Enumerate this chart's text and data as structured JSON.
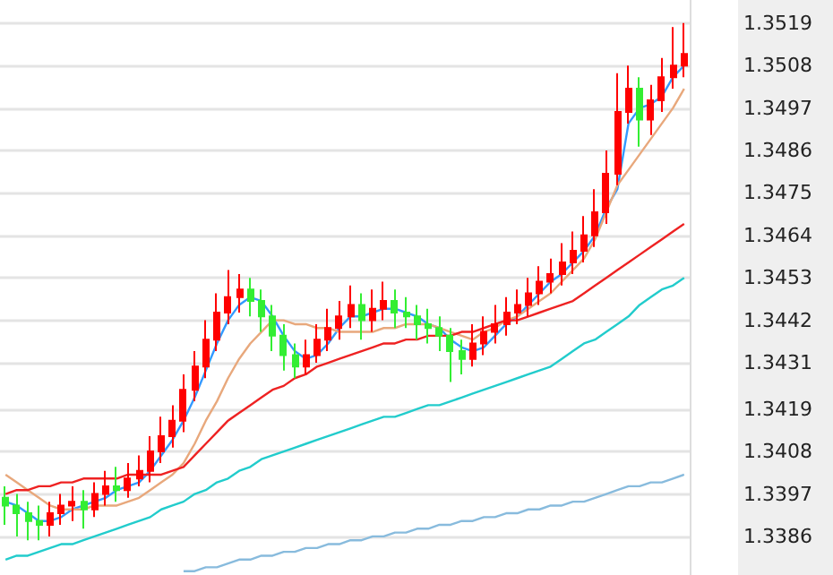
{
  "chart_data": {
    "type": "candlestick",
    "categories": [
      null,
      null,
      null,
      null,
      null,
      null,
      null,
      null,
      null,
      null,
      null,
      null,
      null,
      null,
      null,
      null,
      null,
      null,
      null,
      null,
      null,
      null,
      null,
      null,
      null,
      null,
      null,
      null,
      null,
      null,
      null,
      null,
      null,
      null,
      null,
      null,
      null,
      null,
      null,
      null,
      null,
      null,
      null,
      null,
      null,
      null,
      null,
      null,
      null,
      null,
      null,
      null,
      null,
      null,
      null,
      null,
      null,
      null,
      null,
      null,
      null,
      null
    ],
    "ohlc": [
      [
        1.3396,
        1.3399,
        1.3389,
        1.3394
      ],
      [
        1.3394,
        1.3397,
        1.3386,
        1.3392
      ],
      [
        1.3392,
        1.3395,
        1.3385,
        1.339
      ],
      [
        1.339,
        1.3394,
        1.3385,
        1.3389
      ],
      [
        1.3389,
        1.3395,
        1.3386,
        1.3392
      ],
      [
        1.3392,
        1.3397,
        1.3389,
        1.3394
      ],
      [
        1.3394,
        1.3399,
        1.339,
        1.3395
      ],
      [
        1.3395,
        1.3398,
        1.3388,
        1.3393
      ],
      [
        1.3393,
        1.34,
        1.3391,
        1.3397
      ],
      [
        1.3397,
        1.3403,
        1.3394,
        1.3399
      ],
      [
        1.3399,
        1.3404,
        1.3395,
        1.3398
      ],
      [
        1.3398,
        1.3405,
        1.3396,
        1.3401
      ],
      [
        1.3401,
        1.3407,
        1.3399,
        1.3403
      ],
      [
        1.3403,
        1.3412,
        1.34,
        1.3408
      ],
      [
        1.3408,
        1.3417,
        1.3405,
        1.3412
      ],
      [
        1.3412,
        1.342,
        1.3409,
        1.3416
      ],
      [
        1.3416,
        1.3428,
        1.3413,
        1.3424
      ],
      [
        1.3424,
        1.3434,
        1.3421,
        1.343
      ],
      [
        1.343,
        1.3442,
        1.3427,
        1.3437
      ],
      [
        1.3437,
        1.3449,
        1.3434,
        1.3444
      ],
      [
        1.3444,
        1.3455,
        1.3441,
        1.3448
      ],
      [
        1.3448,
        1.3454,
        1.3444,
        1.345
      ],
      [
        1.345,
        1.3453,
        1.3443,
        1.3447
      ],
      [
        1.3447,
        1.345,
        1.3439,
        1.3443
      ],
      [
        1.3443,
        1.3446,
        1.3434,
        1.3438
      ],
      [
        1.3438,
        1.3441,
        1.3429,
        1.3433
      ],
      [
        1.3433,
        1.3436,
        1.3427,
        1.343
      ],
      [
        1.343,
        1.3437,
        1.3428,
        1.3433
      ],
      [
        1.3433,
        1.3441,
        1.3431,
        1.3437
      ],
      [
        1.3437,
        1.3445,
        1.3434,
        1.344
      ],
      [
        1.344,
        1.3447,
        1.3437,
        1.3443
      ],
      [
        1.3443,
        1.3451,
        1.344,
        1.3446
      ],
      [
        1.3446,
        1.3449,
        1.3437,
        1.3442
      ],
      [
        1.3442,
        1.345,
        1.3439,
        1.3445
      ],
      [
        1.3445,
        1.3452,
        1.3442,
        1.3447
      ],
      [
        1.3447,
        1.345,
        1.344,
        1.3444
      ],
      [
        1.3444,
        1.3448,
        1.344,
        1.3443
      ],
      [
        1.3443,
        1.3446,
        1.3437,
        1.3441
      ],
      [
        1.3441,
        1.3445,
        1.3436,
        1.344
      ],
      [
        1.344,
        1.3443,
        1.3434,
        1.3438
      ],
      [
        1.3438,
        1.344,
        1.3426,
        1.3434
      ],
      [
        1.3434,
        1.3437,
        1.3428,
        1.3432
      ],
      [
        1.3432,
        1.3441,
        1.343,
        1.3436
      ],
      [
        1.3436,
        1.3443,
        1.3433,
        1.3439
      ],
      [
        1.3439,
        1.3446,
        1.3436,
        1.3441
      ],
      [
        1.3441,
        1.3448,
        1.3438,
        1.3444
      ],
      [
        1.3444,
        1.345,
        1.3441,
        1.3446
      ],
      [
        1.3446,
        1.3453,
        1.3443,
        1.3449
      ],
      [
        1.3449,
        1.3456,
        1.3446,
        1.3452
      ],
      [
        1.3452,
        1.3458,
        1.3449,
        1.3454
      ],
      [
        1.3454,
        1.3462,
        1.3451,
        1.3457
      ],
      [
        1.3457,
        1.3465,
        1.3454,
        1.346
      ],
      [
        1.346,
        1.3469,
        1.3457,
        1.3464
      ],
      [
        1.3464,
        1.3476,
        1.3461,
        1.347
      ],
      [
        1.347,
        1.3486,
        1.3467,
        1.348
      ],
      [
        1.348,
        1.3506,
        1.3477,
        1.3496
      ],
      [
        1.3496,
        1.3508,
        1.3493,
        1.3502
      ],
      [
        1.3502,
        1.3505,
        1.3487,
        1.3494
      ],
      [
        1.3494,
        1.3503,
        1.349,
        1.3499
      ],
      [
        1.3499,
        1.351,
        1.3496,
        1.3505
      ],
      [
        1.3505,
        1.3518,
        1.3502,
        1.3508
      ],
      [
        1.3508,
        1.3519,
        1.3505,
        1.3511
      ]
    ],
    "colors": [
      "#33ee33",
      "#33ee33",
      "#33ee33",
      "#33ee33",
      "#ff0000",
      "#ff0000",
      "#ff0000",
      "#33ee33",
      "#ff0000",
      "#ff0000",
      "#33ee33",
      "#ff0000",
      "#ff0000",
      "#ff0000",
      "#ff0000",
      "#ff0000",
      "#ff0000",
      "#ff0000",
      "#ff0000",
      "#ff0000",
      "#ff0000",
      "#ff0000",
      "#33ee33",
      "#33ee33",
      "#33ee33",
      "#33ee33",
      "#33ee33",
      "#ff0000",
      "#ff0000",
      "#ff0000",
      "#ff0000",
      "#ff0000",
      "#33ee33",
      "#ff0000",
      "#ff0000",
      "#33ee33",
      "#33ee33",
      "#33ee33",
      "#33ee33",
      "#33ee33",
      "#33ee33",
      "#33ee33",
      "#ff0000",
      "#ff0000",
      "#ff0000",
      "#ff0000",
      "#ff0000",
      "#ff0000",
      "#ff0000",
      "#ff0000",
      "#ff0000",
      "#ff0000",
      "#ff0000",
      "#ff0000",
      "#ff0000",
      "#ff0000",
      "#ff0000",
      "#33ee33",
      "#ff0000",
      "#ff0000",
      "#ff0000",
      "#ff0000"
    ],
    "series": [
      {
        "type": "line",
        "color": "#3399ff",
        "values": [
          1.3395,
          1.3394,
          1.3392,
          1.339,
          1.339,
          1.3391,
          1.3393,
          1.3394,
          1.3395,
          1.3396,
          1.3398,
          1.3399,
          1.34,
          1.3403,
          1.3407,
          1.3411,
          1.3416,
          1.3422,
          1.3429,
          1.3436,
          1.3442,
          1.3446,
          1.3448,
          1.3447,
          1.3443,
          1.3438,
          1.3434,
          1.3432,
          1.3433,
          1.3436,
          1.344,
          1.3443,
          1.3443,
          1.3444,
          1.3445,
          1.3445,
          1.3444,
          1.3443,
          1.3441,
          1.344,
          1.3437,
          1.3435,
          1.3434,
          1.3435,
          1.3438,
          1.3441,
          1.3443,
          1.3446,
          1.3449,
          1.3452,
          1.3454,
          1.3457,
          1.346,
          1.3464,
          1.3471,
          1.3476,
          1.3493,
          1.3497,
          1.3498,
          1.35,
          1.3505,
          1.3508
        ]
      },
      {
        "type": "line",
        "color": "#e8a87c",
        "values": [
          1.3402,
          1.34,
          1.3398,
          1.3396,
          1.3394,
          1.3393,
          1.3393,
          1.3393,
          1.3394,
          1.3394,
          1.3394,
          1.3395,
          1.3396,
          1.3398,
          1.34,
          1.3402,
          1.3405,
          1.341,
          1.3416,
          1.3421,
          1.3427,
          1.3432,
          1.3436,
          1.3439,
          1.3442,
          1.3442,
          1.3441,
          1.3441,
          1.344,
          1.344,
          1.3439,
          1.3439,
          1.3439,
          1.3439,
          1.344,
          1.344,
          1.3441,
          1.3441,
          1.3441,
          1.344,
          1.3439,
          1.3438,
          1.3437,
          1.3439,
          1.344,
          1.3442,
          1.3443,
          1.3445,
          1.3447,
          1.3449,
          1.3452,
          1.3455,
          1.3458,
          1.3463,
          1.347,
          1.3477,
          1.3481,
          1.3485,
          1.3489,
          1.3493,
          1.3497,
          1.3502
        ]
      },
      {
        "type": "line",
        "color": "#ee2222",
        "values": [
          1.3397,
          1.3398,
          1.3398,
          1.3399,
          1.3399,
          1.34,
          1.34,
          1.3401,
          1.3401,
          1.3401,
          1.3401,
          1.3402,
          1.3402,
          1.3402,
          1.3402,
          1.3403,
          1.3404,
          1.3407,
          1.341,
          1.3413,
          1.3416,
          1.3418,
          1.342,
          1.3422,
          1.3424,
          1.3425,
          1.3427,
          1.3428,
          1.343,
          1.3431,
          1.3432,
          1.3433,
          1.3434,
          1.3435,
          1.3436,
          1.3436,
          1.3437,
          1.3437,
          1.3438,
          1.3438,
          1.3438,
          1.3439,
          1.3439,
          1.344,
          1.3441,
          1.3442,
          1.3442,
          1.3443,
          1.3444,
          1.3445,
          1.3446,
          1.3447,
          1.3449,
          1.3451,
          1.3453,
          1.3455,
          1.3457,
          1.3459,
          1.3461,
          1.3463,
          1.3465,
          1.3467
        ]
      },
      {
        "type": "line",
        "color": "#22cccc",
        "values": [
          1.338,
          1.3381,
          1.3381,
          1.3382,
          1.3383,
          1.3384,
          1.3384,
          1.3385,
          1.3386,
          1.3387,
          1.3388,
          1.3389,
          1.339,
          1.3391,
          1.3393,
          1.3394,
          1.3395,
          1.3397,
          1.3398,
          1.34,
          1.3401,
          1.3403,
          1.3404,
          1.3406,
          1.3407,
          1.3408,
          1.3409,
          1.341,
          1.3411,
          1.3412,
          1.3413,
          1.3414,
          1.3415,
          1.3416,
          1.3417,
          1.3417,
          1.3418,
          1.3419,
          1.342,
          1.342,
          1.3421,
          1.3422,
          1.3423,
          1.3424,
          1.3425,
          1.3426,
          1.3427,
          1.3428,
          1.3429,
          1.343,
          1.3432,
          1.3434,
          1.3436,
          1.3437,
          1.3439,
          1.3441,
          1.3443,
          1.3446,
          1.3448,
          1.345,
          1.3451,
          1.3453
        ]
      },
      {
        "type": "line",
        "color": "#88bbdd",
        "values": [
          null,
          null,
          null,
          null,
          null,
          null,
          null,
          null,
          null,
          null,
          null,
          null,
          null,
          null,
          null,
          null,
          1.3377,
          1.3377,
          1.3378,
          1.3378,
          1.3379,
          1.338,
          1.338,
          1.3381,
          1.3381,
          1.3382,
          1.3382,
          1.3383,
          1.3383,
          1.3384,
          1.3384,
          1.3385,
          1.3385,
          1.3386,
          1.3386,
          1.3387,
          1.3387,
          1.3388,
          1.3388,
          1.3389,
          1.3389,
          1.339,
          1.339,
          1.3391,
          1.3391,
          1.3392,
          1.3392,
          1.3393,
          1.3393,
          1.3394,
          1.3394,
          1.3395,
          1.3395,
          1.3396,
          1.3397,
          1.3398,
          1.3399,
          1.3399,
          1.34,
          1.34,
          1.3401,
          1.3402
        ]
      }
    ],
    "ylim": [
      1.3376,
      1.3525
    ],
    "yticks": [
      1.3519,
      1.3508,
      1.3497,
      1.3486,
      1.3475,
      1.3464,
      1.3453,
      1.3442,
      1.3431,
      1.3419,
      1.3408,
      1.3397,
      1.3386
    ],
    "grid": "y",
    "tick_labels": "y"
  }
}
